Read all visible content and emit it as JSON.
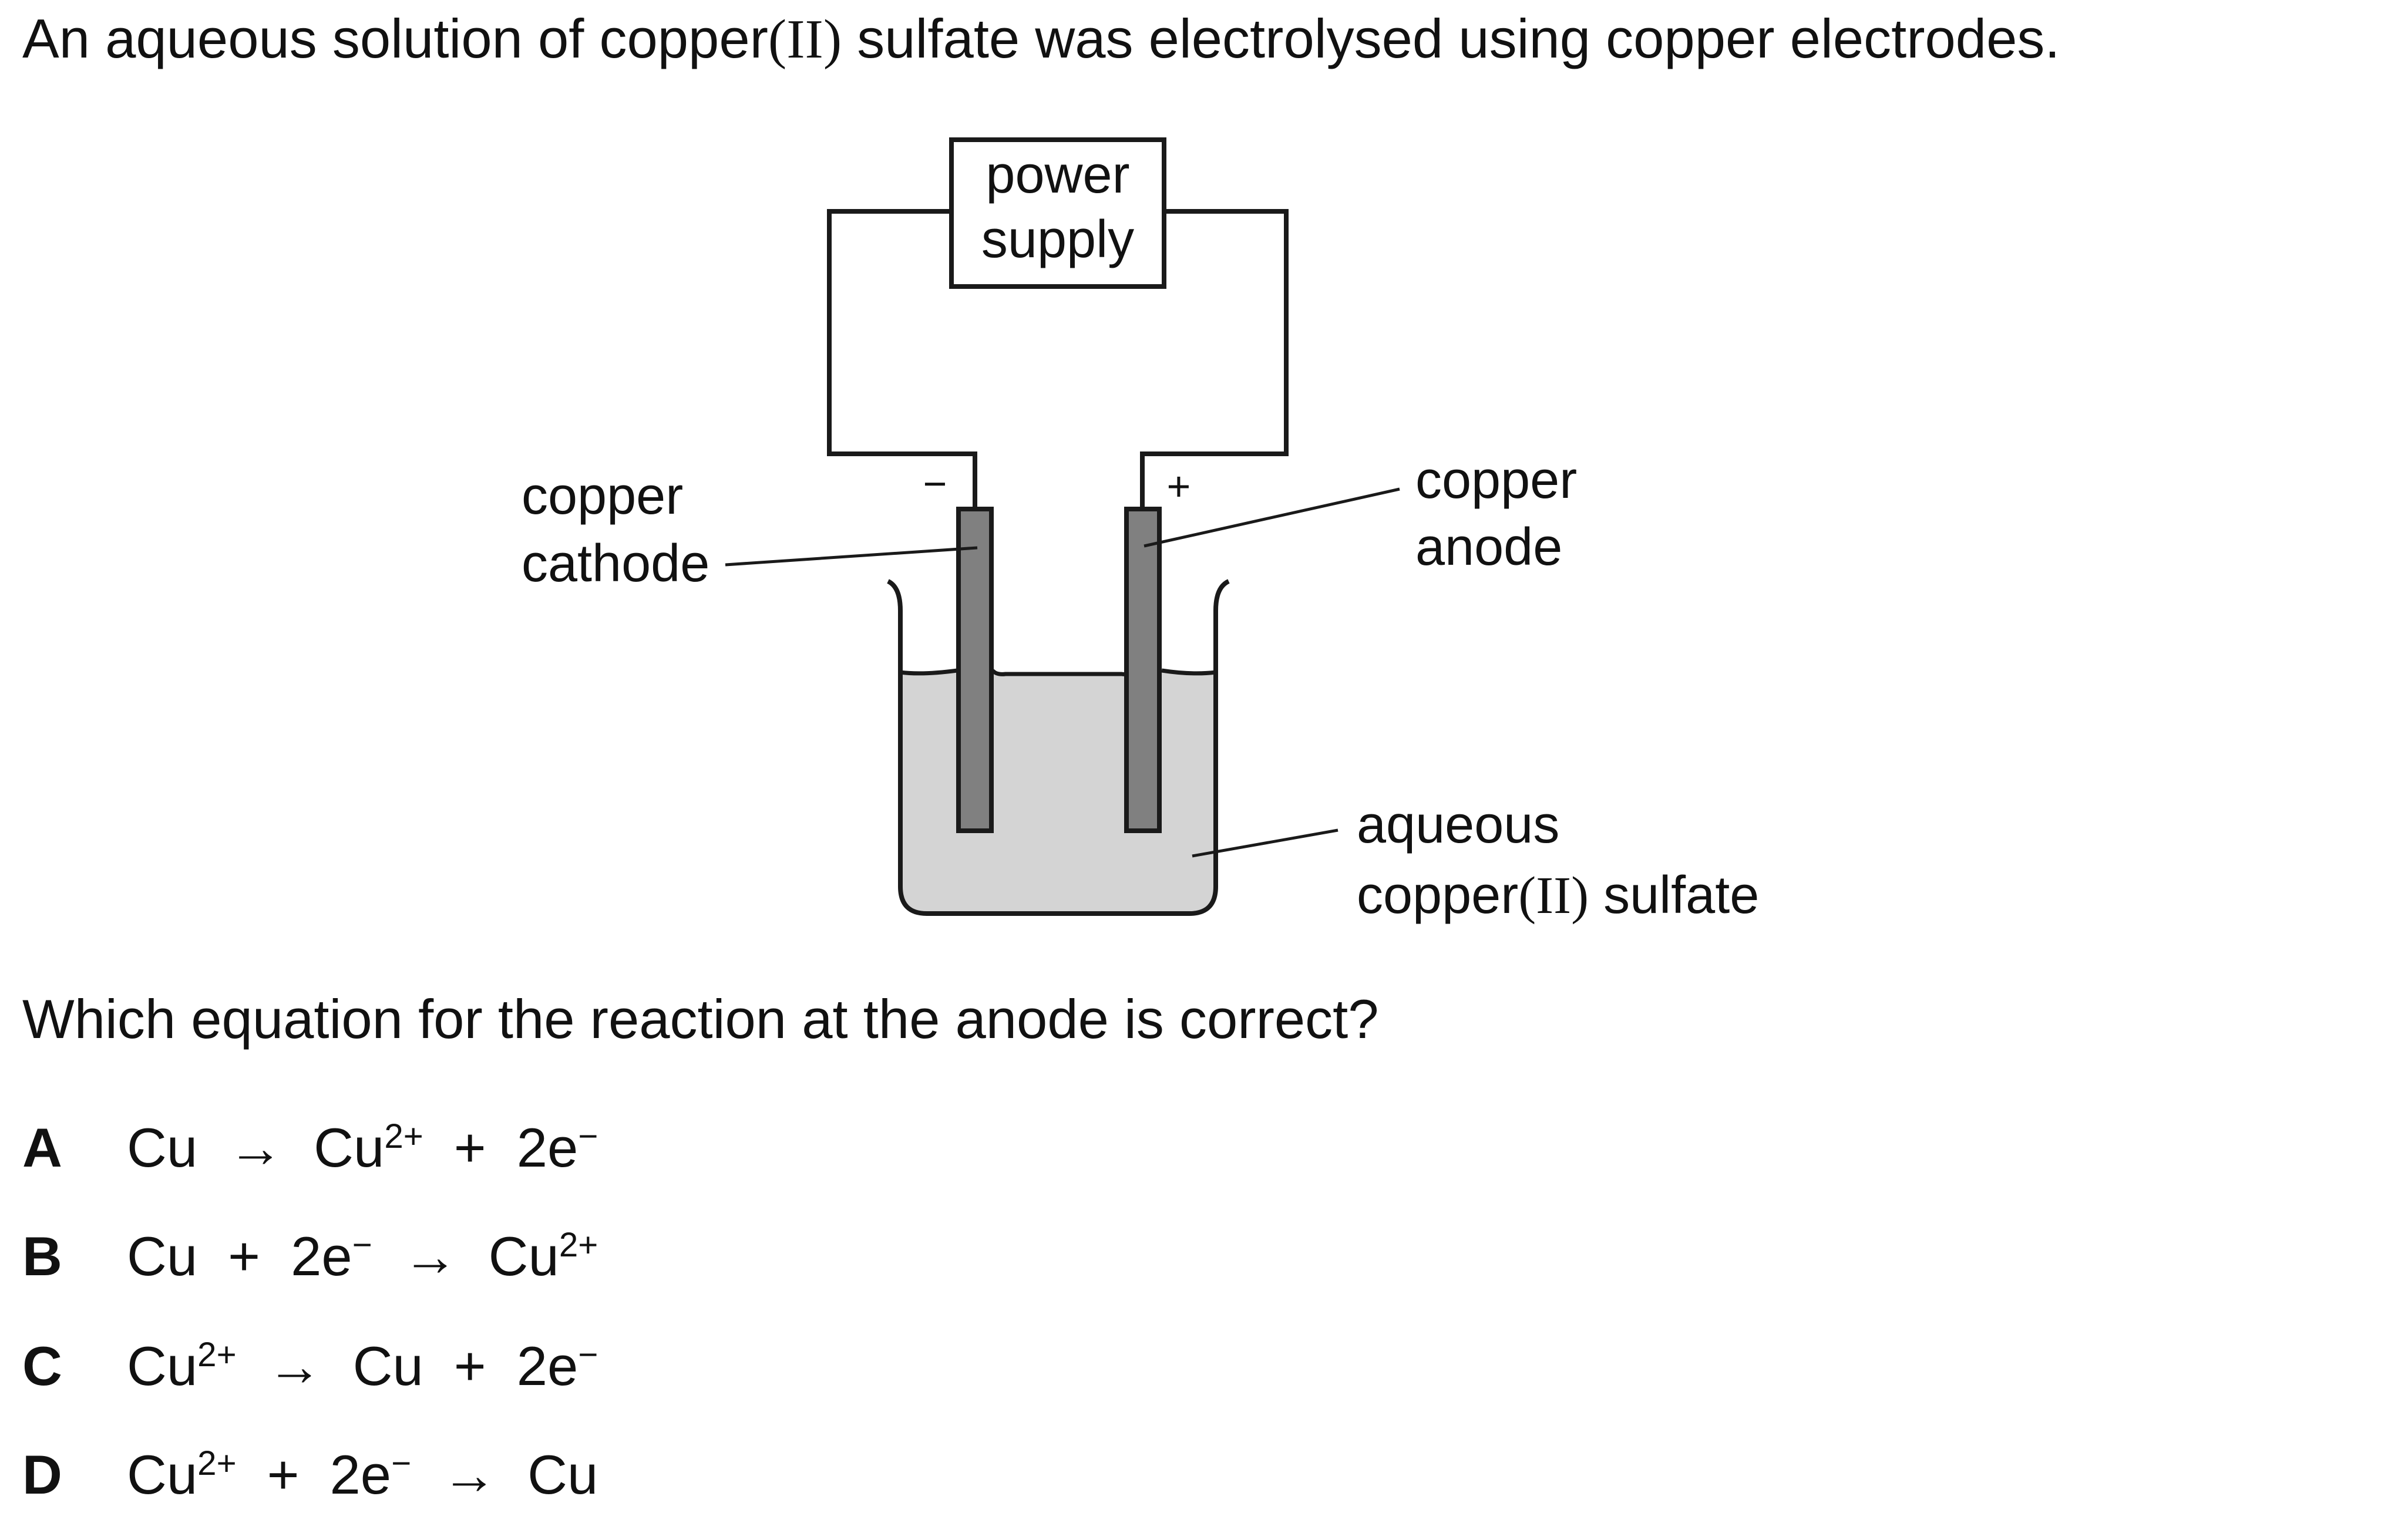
{
  "intro": {
    "before": "An aqueous solution of copper",
    "ox": "(II)",
    "after": " sulfate was electrolysed using copper electrodes."
  },
  "diagram": {
    "power_supply": [
      "power",
      "supply"
    ],
    "cathode_label": [
      "copper",
      "cathode"
    ],
    "anode_label": [
      "copper",
      "anode"
    ],
    "solution_label_line1": "aqueous",
    "solution_label_line2": {
      "before": "copper",
      "ox": "(II)",
      "after": " sulfate"
    },
    "negative_sign": "−",
    "positive_sign": "+",
    "colors": {
      "solution": "#d4d4d4",
      "electrode": "#808080",
      "stroke": "#1a1a1a"
    }
  },
  "question": "Which equation for the reaction at the anode is correct?",
  "options": [
    {
      "letter": "A",
      "parts": [
        "Cu",
        "→",
        "Cu",
        "2+",
        "+",
        "2e",
        "−"
      ]
    },
    {
      "letter": "B",
      "parts": [
        "Cu",
        "+",
        "2e",
        "−",
        "→",
        "Cu",
        "2+"
      ]
    },
    {
      "letter": "C",
      "parts": [
        "Cu",
        "2+",
        "→",
        "Cu",
        "+",
        "2e",
        "−"
      ]
    },
    {
      "letter": "D",
      "parts": [
        "Cu",
        "2+",
        "+",
        "2e",
        "−",
        "→",
        "Cu"
      ]
    }
  ]
}
